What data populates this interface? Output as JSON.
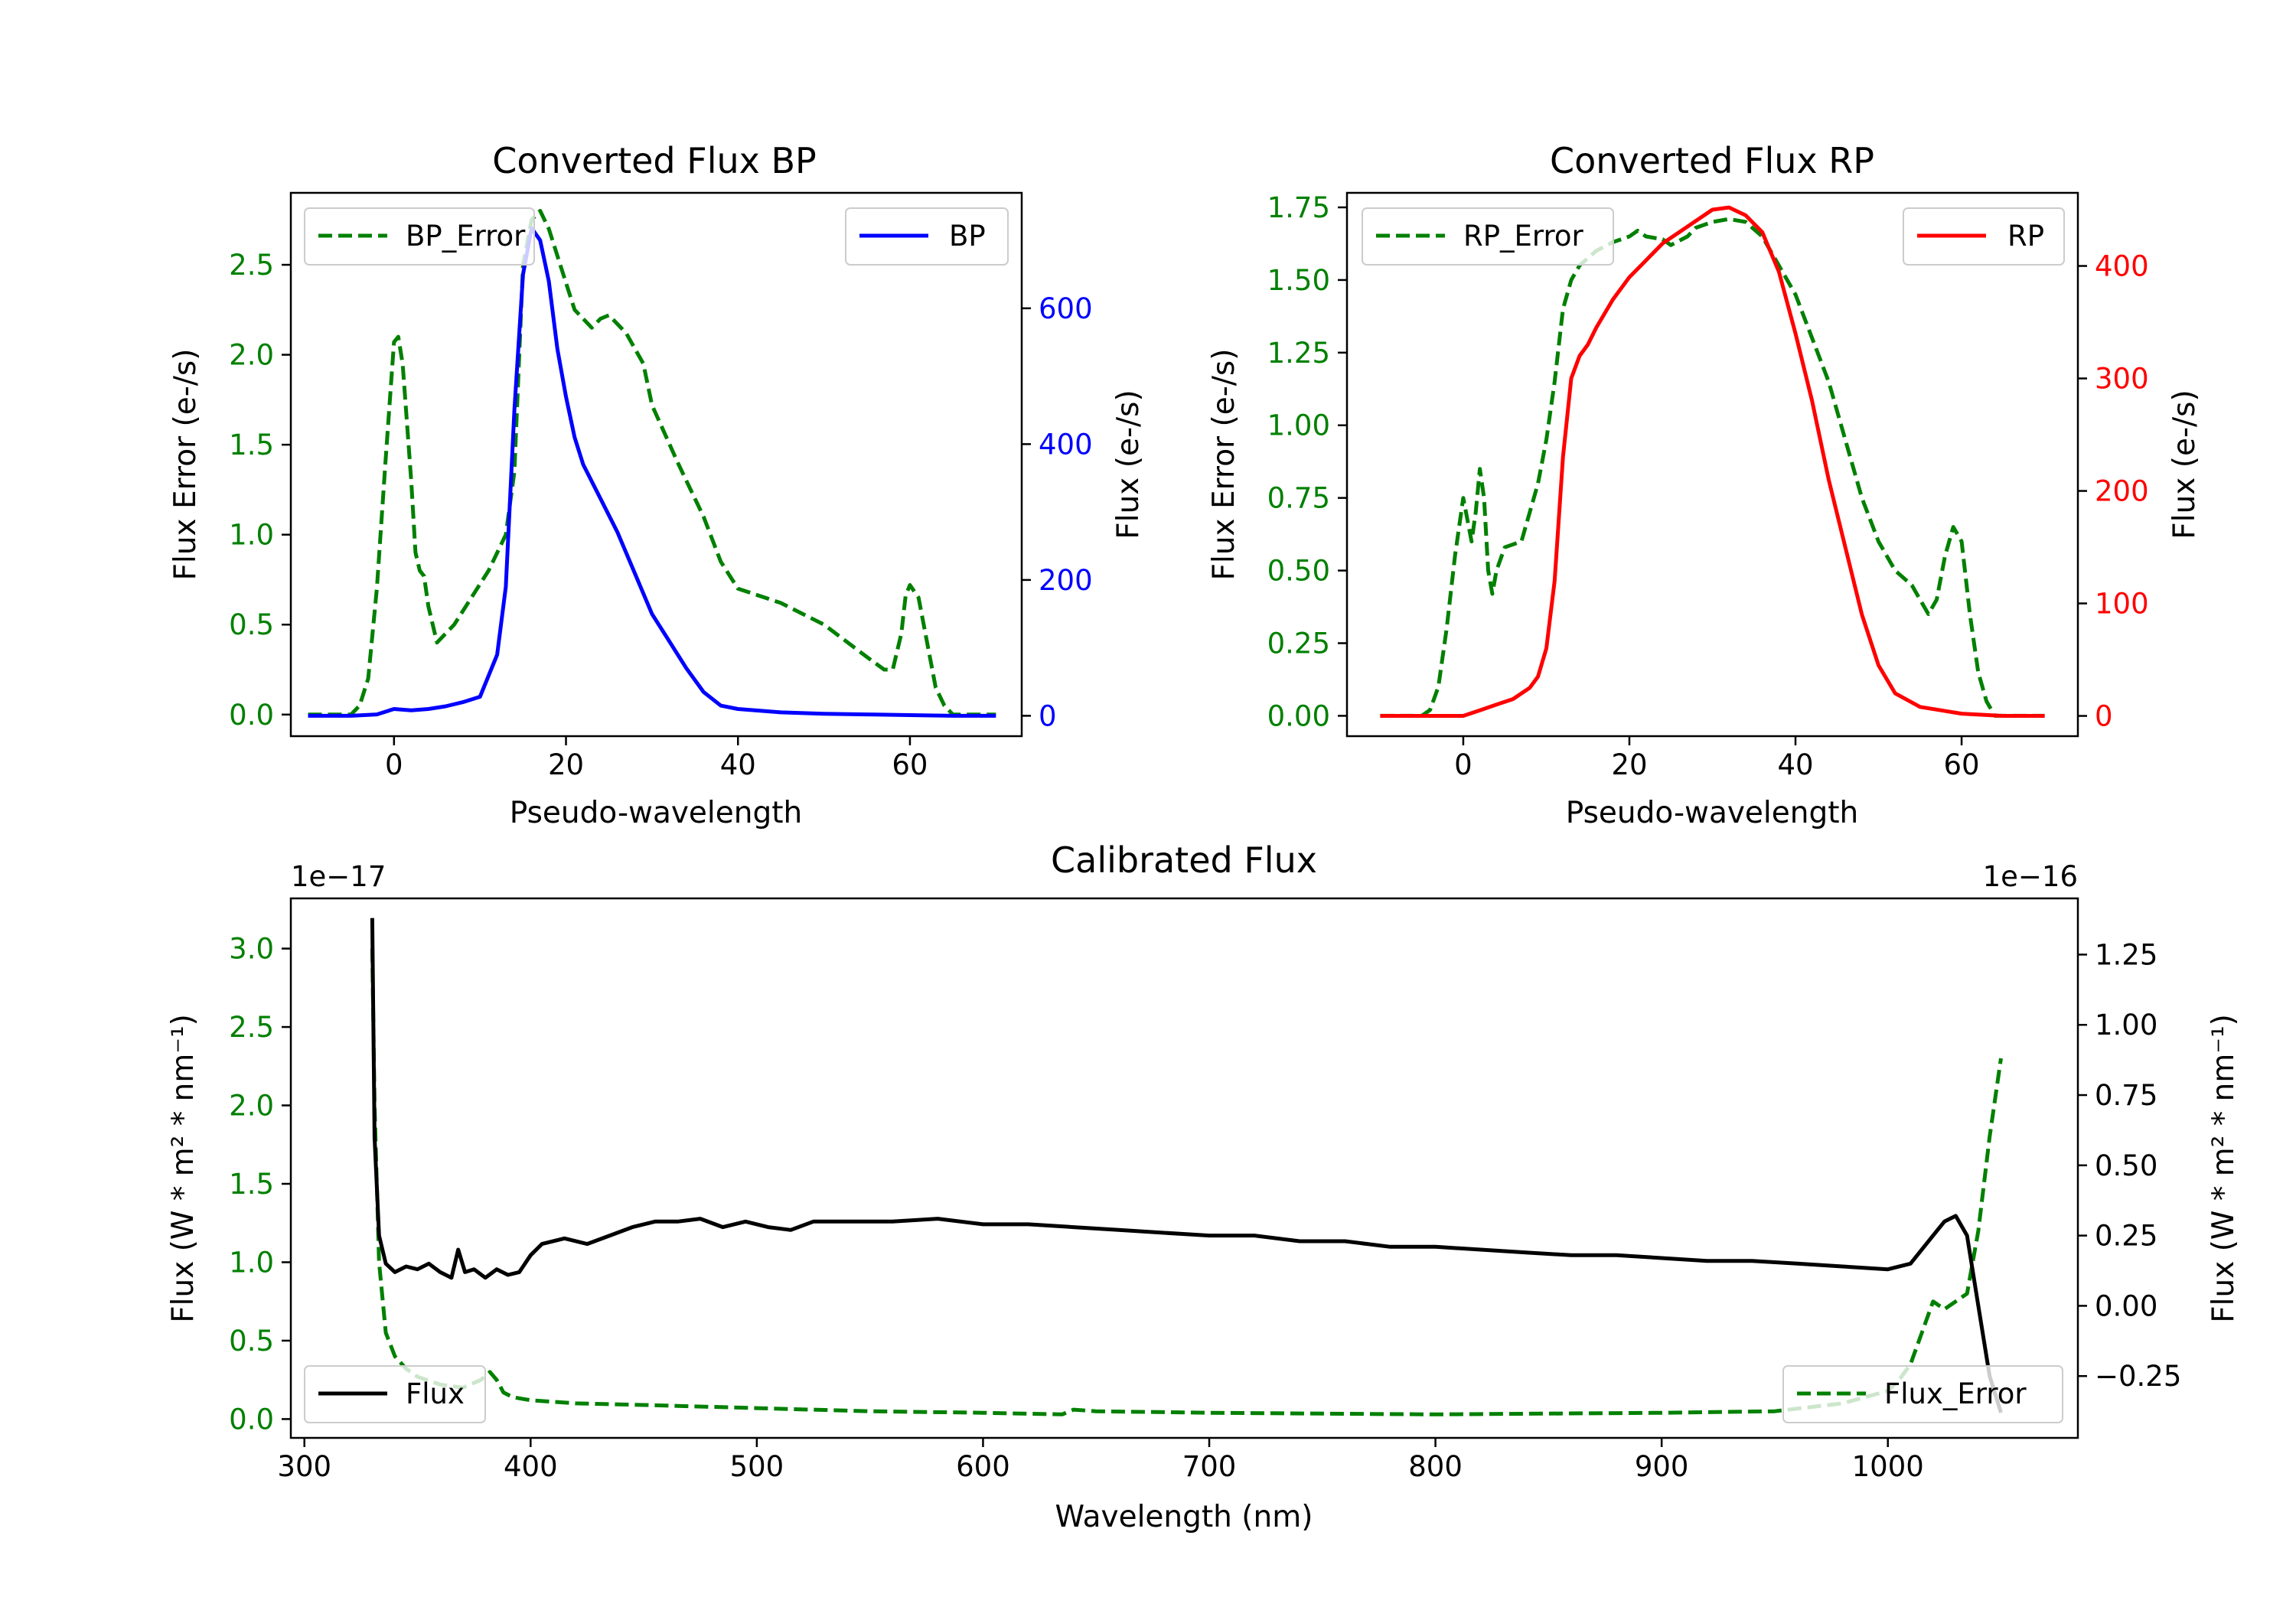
{
  "colors": {
    "bp": "#0000ff",
    "rp": "#ff0000",
    "error": "#008000",
    "flux": "#000000"
  },
  "chart_data": [
    {
      "id": "bp",
      "type": "line",
      "title": "Converted Flux BP",
      "xlabel": "Pseudo-wavelength",
      "xlim": [
        -12,
        73
      ],
      "x_ticks": [
        "0",
        "20",
        "40",
        "60"
      ],
      "y_left": {
        "label": "Flux Error (e-/s)",
        "lim": [
          -0.12,
          2.9
        ],
        "ticks": [
          "0.0",
          "0.5",
          "1.0",
          "1.5",
          "2.0",
          "2.5"
        ]
      },
      "y_right": {
        "label": "Flux (e-/s)",
        "lim": [
          -30,
          770
        ],
        "ticks": [
          "0",
          "200",
          "400",
          "600"
        ]
      },
      "series": [
        {
          "name": "BP_Error",
          "axis": "left",
          "style": "dashed",
          "color_key": "error",
          "x": [
            -10,
            -5,
            -4,
            -3,
            -2,
            -1,
            0,
            0.5,
            1,
            2,
            2.5,
            3,
            3.5,
            4,
            5,
            7,
            9,
            11,
            13,
            14,
            15,
            16,
            17,
            18,
            19,
            20,
            21,
            23,
            24,
            25,
            27,
            29,
            30,
            33,
            34,
            36,
            38,
            40,
            45,
            50,
            55,
            57,
            58,
            59,
            59.5,
            60,
            61,
            62,
            63,
            64,
            65,
            70
          ],
          "y": [
            0,
            0,
            0.05,
            0.2,
            0.7,
            1.4,
            2.07,
            2.1,
            1.95,
            1.3,
            0.9,
            0.8,
            0.77,
            0.6,
            0.4,
            0.5,
            0.65,
            0.8,
            1.0,
            1.35,
            2.5,
            2.75,
            2.8,
            2.7,
            2.55,
            2.4,
            2.25,
            2.15,
            2.2,
            2.22,
            2.12,
            1.95,
            1.72,
            1.4,
            1.3,
            1.1,
            0.85,
            0.7,
            0.62,
            0.5,
            0.32,
            0.25,
            0.25,
            0.45,
            0.66,
            0.72,
            0.65,
            0.4,
            0.15,
            0.05,
            0.0,
            0.0
          ]
        },
        {
          "name": "BP",
          "axis": "right",
          "style": "solid",
          "color_key": "bp",
          "x": [
            -10,
            -5,
            -2,
            0,
            2,
            4,
            6,
            8,
            10,
            12,
            13,
            14,
            15,
            16,
            17,
            18,
            19,
            20,
            21,
            22,
            24,
            26,
            28,
            30,
            32,
            34,
            36,
            38,
            40,
            42,
            45,
            50,
            55,
            60,
            65,
            70
          ],
          "y": [
            0,
            0,
            2,
            10,
            8,
            10,
            14,
            20,
            28,
            90,
            190,
            450,
            650,
            718,
            700,
            640,
            540,
            470,
            410,
            370,
            320,
            270,
            210,
            150,
            110,
            70,
            35,
            15,
            10,
            8,
            5,
            3,
            2,
            1,
            0,
            0
          ]
        }
      ],
      "legend": [
        {
          "label": "BP_Error",
          "position": "upper-left"
        },
        {
          "label": "BP",
          "position": "upper-right"
        }
      ]
    },
    {
      "id": "rp",
      "type": "line",
      "title": "Converted Flux RP",
      "xlabel": "Pseudo-wavelength",
      "xlim": [
        -14,
        74
      ],
      "x_ticks": [
        "0",
        "20",
        "40",
        "60"
      ],
      "y_left": {
        "label": "Flux Error (e-/s)",
        "lim": [
          -0.07,
          1.8
        ],
        "ticks": [
          "0.00",
          "0.25",
          "0.50",
          "0.75",
          "1.00",
          "1.25",
          "1.50",
          "1.75"
        ]
      },
      "y_right": {
        "label": "Flux (e-/s)",
        "lim": [
          -18,
          465
        ],
        "ticks": [
          "0",
          "100",
          "200",
          "300",
          "400"
        ]
      },
      "series": [
        {
          "name": "RP_Error",
          "axis": "left",
          "style": "dashed",
          "color_key": "error",
          "x": [
            -10,
            -5,
            -4,
            -3,
            -2,
            -1,
            0,
            1,
            1.5,
            2,
            2.5,
            3,
            3.5,
            4,
            5,
            7,
            9,
            10,
            11,
            12,
            13,
            14,
            16,
            18,
            20,
            21,
            22,
            24,
            25,
            27,
            28,
            30,
            32,
            34,
            36,
            38,
            40,
            42,
            44,
            46,
            48,
            50,
            52,
            54,
            55,
            56,
            57,
            58,
            59,
            60,
            61,
            62,
            63,
            64,
            70
          ],
          "y": [
            0,
            0,
            0.02,
            0.1,
            0.3,
            0.55,
            0.75,
            0.6,
            0.7,
            0.85,
            0.75,
            0.5,
            0.42,
            0.5,
            0.58,
            0.6,
            0.8,
            0.95,
            1.15,
            1.4,
            1.5,
            1.55,
            1.6,
            1.63,
            1.65,
            1.67,
            1.65,
            1.64,
            1.62,
            1.65,
            1.68,
            1.7,
            1.71,
            1.7,
            1.65,
            1.55,
            1.45,
            1.3,
            1.15,
            0.95,
            0.75,
            0.6,
            0.5,
            0.45,
            0.4,
            0.35,
            0.4,
            0.55,
            0.65,
            0.6,
            0.35,
            0.15,
            0.05,
            0,
            0
          ]
        },
        {
          "name": "RP",
          "axis": "right",
          "style": "solid",
          "color_key": "rp",
          "x": [
            -10,
            -5,
            0,
            2,
            4,
            6,
            8,
            9,
            10,
            11,
            12,
            13,
            14,
            15,
            16,
            18,
            20,
            22,
            24,
            26,
            28,
            30,
            32,
            34,
            36,
            38,
            40,
            42,
            44,
            46,
            48,
            50,
            52,
            55,
            60,
            65,
            70
          ],
          "y": [
            0,
            0,
            0,
            5,
            10,
            15,
            25,
            35,
            60,
            120,
            230,
            300,
            320,
            330,
            345,
            370,
            390,
            405,
            420,
            430,
            440,
            450,
            452,
            445,
            430,
            395,
            340,
            280,
            210,
            150,
            90,
            45,
            20,
            8,
            2,
            0,
            0
          ]
        }
      ],
      "legend": [
        {
          "label": "RP_Error",
          "position": "upper-left"
        },
        {
          "label": "RP",
          "position": "upper-right"
        }
      ]
    },
    {
      "id": "cal",
      "type": "line",
      "title": "Calibrated Flux",
      "xlabel": "Wavelength (nm)",
      "xlim": [
        294,
        1084
      ],
      "x_ticks": [
        "300",
        "400",
        "500",
        "600",
        "700",
        "800",
        "900",
        "1000"
      ],
      "y_left": {
        "label": "Flux (W * m² * nm⁻¹)",
        "lim": [
          -0.12,
          3.32
        ],
        "ticks": [
          "0.0",
          "0.5",
          "1.0",
          "1.5",
          "2.0",
          "2.5",
          "3.0"
        ],
        "offset": "1e−17"
      },
      "y_right": {
        "label": "Flux (W * m² * nm⁻¹)",
        "lim": [
          -0.47,
          1.45
        ],
        "ticks": [
          "−0.25",
          "0.00",
          "0.25",
          "0.50",
          "0.75",
          "1.00",
          "1.25"
        ],
        "offset": "1e−16"
      },
      "series": [
        {
          "name": "Flux_Error",
          "axis": "left",
          "style": "dashed",
          "color_key": "error",
          "x": [
            330,
            331,
            333,
            336,
            340,
            345,
            350,
            360,
            370,
            378,
            382,
            385,
            388,
            392,
            396,
            400,
            420,
            450,
            500,
            550,
            600,
            635,
            640,
            650,
            700,
            800,
            900,
            950,
            980,
            1000,
            1005,
            1010,
            1015,
            1020,
            1025,
            1030,
            1035,
            1040,
            1045,
            1050
          ],
          "y": [
            3.0,
            2.0,
            1.0,
            0.55,
            0.4,
            0.32,
            0.27,
            0.22,
            0.2,
            0.25,
            0.3,
            0.25,
            0.17,
            0.14,
            0.13,
            0.12,
            0.1,
            0.09,
            0.07,
            0.05,
            0.04,
            0.03,
            0.06,
            0.05,
            0.04,
            0.03,
            0.04,
            0.05,
            0.1,
            0.18,
            0.25,
            0.35,
            0.55,
            0.75,
            0.7,
            0.75,
            0.8,
            1.2,
            1.8,
            2.3
          ]
        },
        {
          "name": "Flux",
          "axis": "right",
          "style": "solid",
          "color_key": "flux",
          "x": [
            330,
            331,
            333,
            336,
            340,
            345,
            350,
            355,
            360,
            365,
            368,
            371,
            375,
            380,
            385,
            390,
            395,
            400,
            405,
            415,
            425,
            435,
            445,
            455,
            465,
            475,
            485,
            495,
            505,
            515,
            525,
            535,
            545,
            560,
            580,
            600,
            620,
            640,
            660,
            680,
            700,
            720,
            740,
            760,
            780,
            800,
            820,
            840,
            860,
            880,
            900,
            920,
            940,
            960,
            980,
            1000,
            1010,
            1020,
            1025,
            1030,
            1035,
            1040,
            1045,
            1050
          ],
          "y": [
            1.38,
            0.6,
            0.25,
            0.15,
            0.12,
            0.14,
            0.13,
            0.15,
            0.12,
            0.1,
            0.2,
            0.12,
            0.13,
            0.1,
            0.13,
            0.11,
            0.12,
            0.18,
            0.22,
            0.24,
            0.22,
            0.25,
            0.28,
            0.3,
            0.3,
            0.31,
            0.28,
            0.3,
            0.28,
            0.27,
            0.3,
            0.3,
            0.3,
            0.3,
            0.31,
            0.29,
            0.29,
            0.28,
            0.27,
            0.26,
            0.25,
            0.25,
            0.23,
            0.23,
            0.21,
            0.21,
            0.2,
            0.19,
            0.18,
            0.18,
            0.17,
            0.16,
            0.16,
            0.15,
            0.14,
            0.13,
            0.15,
            0.25,
            0.3,
            0.32,
            0.25,
            0.0,
            -0.25,
            -0.38
          ]
        }
      ],
      "legend": [
        {
          "label": "Flux",
          "position": "lower-left"
        },
        {
          "label": "Flux_Error",
          "position": "lower-right"
        }
      ]
    }
  ]
}
